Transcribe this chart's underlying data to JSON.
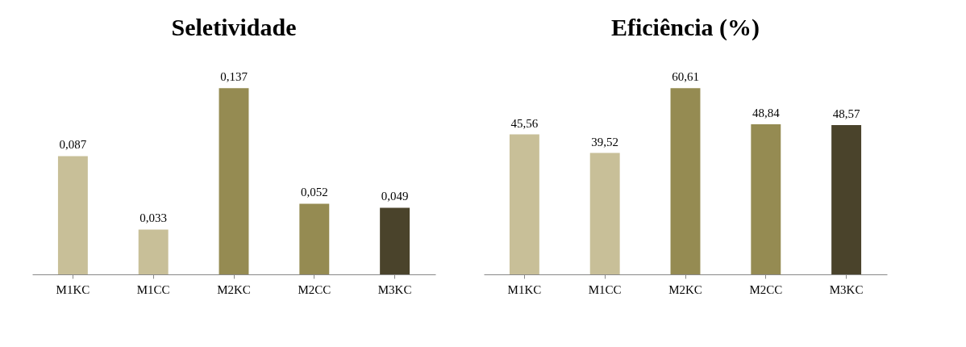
{
  "chart_data": [
    {
      "type": "bar",
      "title": "Seletividade",
      "categories": [
        "M1KC",
        "M1CC",
        "M2KC",
        "M2CC",
        "M3KC"
      ],
      "values": [
        0.087,
        0.033,
        0.137,
        0.052,
        0.049
      ],
      "value_labels": [
        "0,087",
        "0,033",
        "0,137",
        "0,052",
        "0,049"
      ],
      "colors": [
        "#c8bf98",
        "#c8bf98",
        "#958b52",
        "#958b52",
        "#4a432b"
      ]
    },
    {
      "type": "bar",
      "title": "Eficiência (%)",
      "categories": [
        "M1KC",
        "M1CC",
        "M2KC",
        "M2CC",
        "M3KC"
      ],
      "values": [
        45.56,
        39.52,
        60.61,
        48.84,
        48.57
      ],
      "value_labels": [
        "45,56",
        "39,52",
        "60,61",
        "48,84",
        "48,57"
      ],
      "colors": [
        "#c8bf98",
        "#c8bf98",
        "#958b52",
        "#958b52",
        "#4a432b"
      ]
    }
  ]
}
